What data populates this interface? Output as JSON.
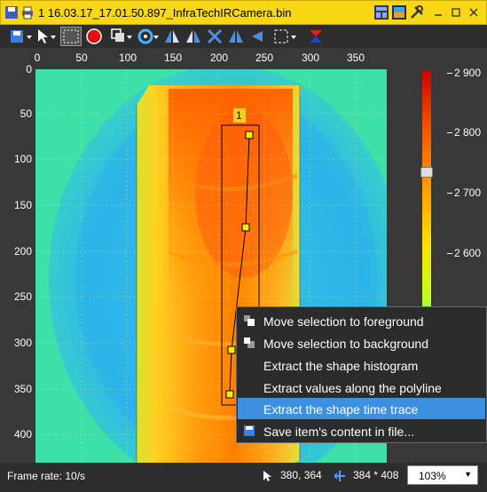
{
  "window": {
    "title": "1 16.03.17_17.01.50.897_InfraTechIRCamera.bin",
    "icons": [
      "save-icon",
      "print-icon",
      "layout-icon",
      "image-icon",
      "tools-icon",
      "minimize-icon",
      "restore-icon",
      "close-icon"
    ]
  },
  "toolbar": {
    "icons": [
      "save-dropdown-icon",
      "pointer-tool-icon",
      "select-region-icon",
      "record-icon",
      "layers-icon",
      "palette-icon",
      "flip-left-icon",
      "flip-right-icon",
      "flip-both-icon",
      "mirror-icon",
      "arrow-left-icon",
      "selection-frame-icon",
      "sort-icon"
    ]
  },
  "image_axes": {
    "x_ticks": [
      "0",
      "50",
      "100",
      "150",
      "200",
      "250",
      "300",
      "350"
    ],
    "y_ticks": [
      "0",
      "50",
      "100",
      "150",
      "200",
      "250",
      "300",
      "350",
      "400"
    ]
  },
  "color_scale": {
    "ticks": [
      "2 900",
      "2 800",
      "2 700",
      "2 600"
    ],
    "level": "2 800",
    "colors": [
      "#d10000",
      "#f05000",
      "#ffa000",
      "#ffe000",
      "#c0ff20",
      "#40e0c0"
    ]
  },
  "annotation": {
    "shape_label": "1"
  },
  "context_menu": {
    "items": [
      {
        "label": "Move selection to foreground",
        "icon": "foreground-icon"
      },
      {
        "label": "Move selection to background",
        "icon": "background-icon"
      },
      {
        "label": "Extract the shape histogram",
        "icon": ""
      },
      {
        "label": "Extract values along the polyline",
        "icon": ""
      },
      {
        "label": "Extract the shape time trace",
        "icon": "",
        "highlighted": true
      },
      {
        "label": "Save item's content in file...",
        "icon": "save-icon"
      }
    ]
  },
  "status": {
    "frame_rate": "Frame rate: 10/s",
    "cursor": "380, 364",
    "size": "384 * 408",
    "zoom": "103%"
  }
}
